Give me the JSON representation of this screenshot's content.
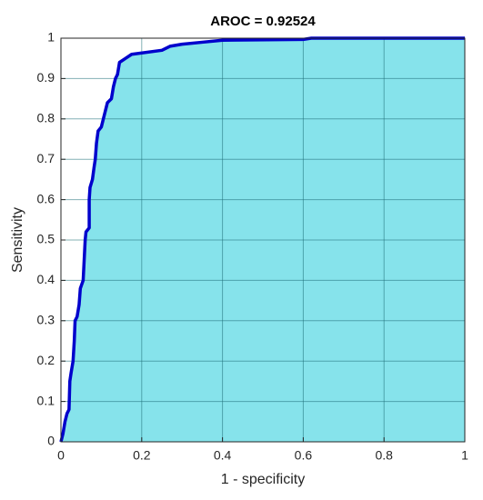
{
  "chart_data": {
    "type": "area",
    "title": "AROC = 0.92524",
    "xlabel": "1 - specificity",
    "ylabel": "Sensitivity",
    "x": [
      0,
      0.005,
      0.01,
      0.015,
      0.02,
      0.022,
      0.025,
      0.03,
      0.033,
      0.035,
      0.04,
      0.045,
      0.048,
      0.055,
      0.06,
      0.062,
      0.07,
      0.07,
      0.072,
      0.078,
      0.082,
      0.085,
      0.088,
      0.092,
      0.1,
      0.105,
      0.11,
      0.115,
      0.125,
      0.13,
      0.135,
      0.14,
      0.145,
      0.16,
      0.175,
      0.25,
      0.27,
      0.3,
      0.35,
      0.4,
      0.6,
      0.62,
      1
    ],
    "values": [
      0,
      0.02,
      0.05,
      0.07,
      0.08,
      0.15,
      0.17,
      0.2,
      0.25,
      0.3,
      0.31,
      0.34,
      0.38,
      0.4,
      0.5,
      0.52,
      0.53,
      0.6,
      0.63,
      0.65,
      0.68,
      0.7,
      0.74,
      0.77,
      0.78,
      0.8,
      0.82,
      0.84,
      0.85,
      0.88,
      0.9,
      0.91,
      0.94,
      0.95,
      0.96,
      0.97,
      0.98,
      0.985,
      0.99,
      0.995,
      0.997,
      1,
      1
    ],
    "color": "#0000cc",
    "fill_color": "#86e3eb",
    "xlim": [
      0,
      1
    ],
    "ylim": [
      0,
      1
    ],
    "xticks": [
      0,
      0.2,
      0.4,
      0.6,
      0.8,
      1
    ],
    "yticks": [
      0,
      0.1,
      0.2,
      0.3,
      0.4,
      0.5,
      0.6,
      0.7,
      0.8,
      0.9,
      1
    ],
    "grid": true
  }
}
